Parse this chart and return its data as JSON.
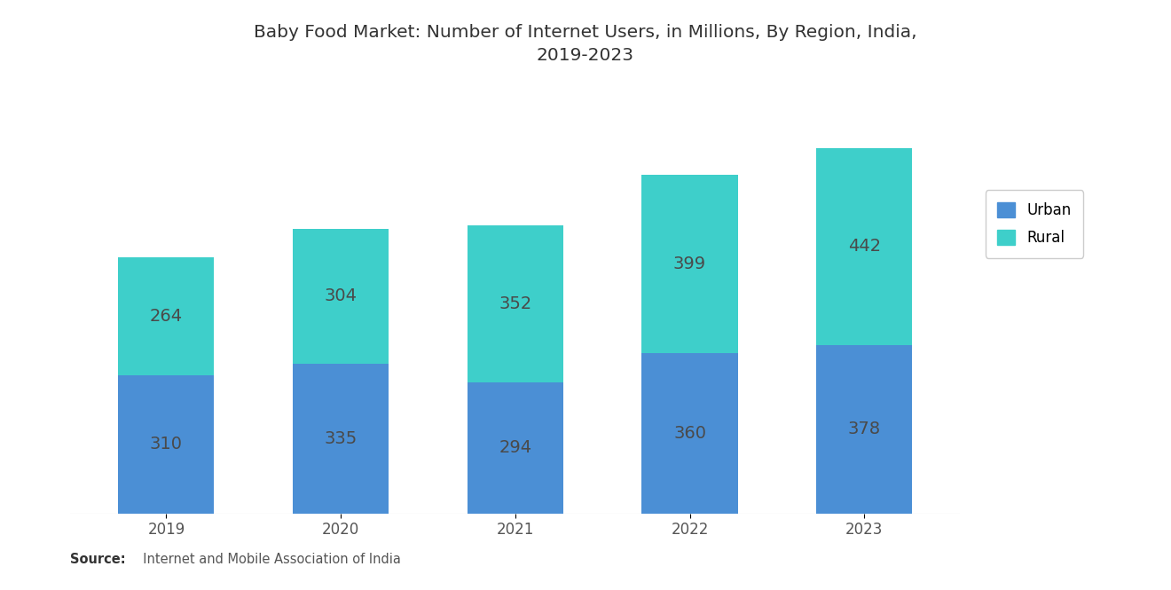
{
  "title": "Baby Food Market: Number of Internet Users, in Millions, By Region, India,\n2019-2023",
  "years": [
    "2019",
    "2020",
    "2021",
    "2022",
    "2023"
  ],
  "urban": [
    310,
    335,
    294,
    360,
    378
  ],
  "rural": [
    264,
    304,
    352,
    399,
    442
  ],
  "urban_color": "#4B8FD5",
  "rural_color": "#3ECFCA",
  "background_color": "#FFFFFF",
  "title_fontsize": 14.5,
  "label_fontsize": 14,
  "tick_fontsize": 12,
  "source_bold": "Source:",
  "source_rest": "  Internet and Mobile Association of India",
  "bar_width": 0.55
}
